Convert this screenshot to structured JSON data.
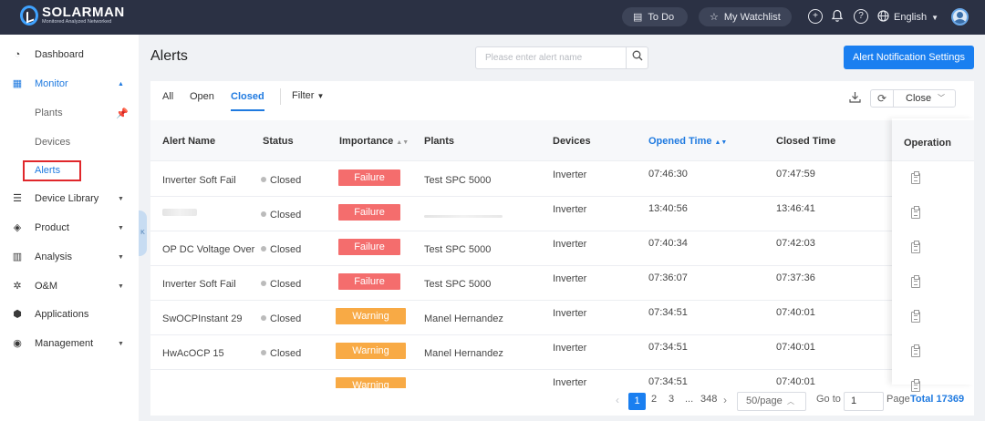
{
  "app": {
    "brand": "SOLARMAN",
    "tagline": "Monitored  Analyzed  Networked"
  },
  "topbar": {
    "todo_label": "To Do",
    "watchlist_label": "My Watchlist",
    "language": "English"
  },
  "sidebar": {
    "items": [
      {
        "label": "Dashboard",
        "icon": "dashboard-icon"
      },
      {
        "label": "Monitor",
        "icon": "monitor-icon"
      },
      {
        "label": "Device Library",
        "icon": "device-library-icon"
      },
      {
        "label": "Product",
        "icon": "product-icon"
      },
      {
        "label": "Analysis",
        "icon": "analysis-icon"
      },
      {
        "label": "O&M",
        "icon": "gear-icon"
      },
      {
        "label": "Applications",
        "icon": "applications-icon"
      },
      {
        "label": "Management",
        "icon": "management-icon"
      }
    ],
    "monitor_sub": [
      "Plants",
      "Devices",
      "Alerts"
    ]
  },
  "page": {
    "title": "Alerts",
    "search_placeholder": "Please enter alert name",
    "notify_button": "Alert Notification Settings"
  },
  "tabs": {
    "all": "All",
    "open": "Open",
    "closed": "Closed",
    "filter": "Filter"
  },
  "toolbar": {
    "close_select": "Close"
  },
  "table": {
    "columns": [
      "Alert Name",
      "Status",
      "Importance",
      "Plants",
      "Devices",
      "Opened Time",
      "Closed Time",
      "Operation"
    ],
    "rows": [
      {
        "name": "Inverter Soft Fail",
        "status": "Closed",
        "importance": "Failure",
        "plant": "Test SPC 5000",
        "device": "Inverter",
        "opened": "07:46:30",
        "closed": "07:47:59"
      },
      {
        "name": "",
        "status": "Closed",
        "importance": "Failure",
        "plant": "",
        "device": "Inverter",
        "opened": "13:40:56",
        "closed": "13:46:41"
      },
      {
        "name": "OP DC Voltage Over",
        "status": "Closed",
        "importance": "Failure",
        "plant": "Test SPC 5000",
        "device": "Inverter",
        "opened": "07:40:34",
        "closed": "07:42:03"
      },
      {
        "name": "Inverter Soft Fail",
        "status": "Closed",
        "importance": "Failure",
        "plant": "Test SPC 5000",
        "device": "Inverter",
        "opened": "07:36:07",
        "closed": "07:37:36"
      },
      {
        "name": "SwOCPInstant 29",
        "status": "Closed",
        "importance": "Warning",
        "plant": "Manel Hernandez",
        "device": "Inverter",
        "opened": "07:34:51",
        "closed": "07:40:01"
      },
      {
        "name": "HwAcOCP 15",
        "status": "Closed",
        "importance": "Warning",
        "plant": "Manel Hernandez",
        "device": "Inverter",
        "opened": "07:34:51",
        "closed": "07:40:01"
      },
      {
        "name": "",
        "status": "",
        "importance": "Warning",
        "plant": "",
        "device": "Inverter",
        "opened": "07:34:51",
        "closed": "07:40:01"
      }
    ]
  },
  "colors": {
    "failure": "#f46d6d",
    "warning": "#f8aa45",
    "accent": "#1a7ff0"
  },
  "pagination": {
    "pages": [
      "1",
      "2",
      "3",
      "...",
      "348"
    ],
    "page_size": "50/page",
    "goto_label": "Go to",
    "goto_value": "1",
    "page_label": "Page",
    "total": "Total 17369"
  }
}
